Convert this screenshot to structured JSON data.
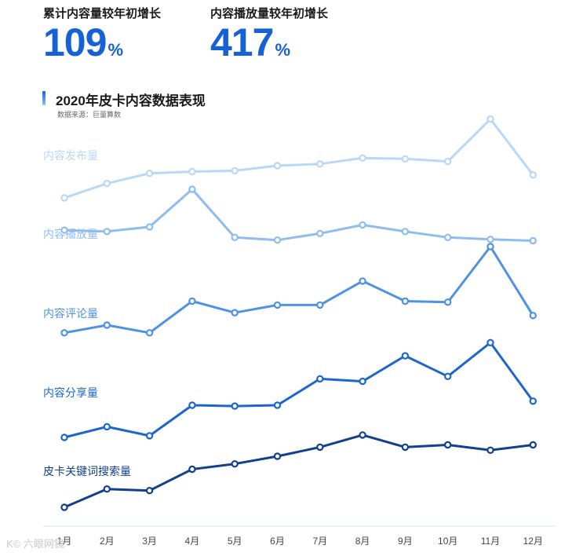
{
  "kpis": [
    {
      "label": "累计内容量较年初增长",
      "value": "109",
      "unit": "%"
    },
    {
      "label": "内容播放量较年初增长",
      "value": "417",
      "unit": "%"
    }
  ],
  "section": {
    "title": "2020年皮卡内容数据表现",
    "source": "数据来源：巨量算数"
  },
  "watermark": "K© 六眼网镜",
  "chart_data": {
    "type": "line",
    "categories": [
      "1月",
      "2月",
      "3月",
      "4月",
      "5月",
      "6月",
      "7月",
      "8月",
      "9月",
      "10月",
      "11月",
      "12月"
    ],
    "y_axis": "none",
    "grid": false,
    "series_scale": "each series drawn in its own band (relative index, no shared value axis)",
    "series": [
      {
        "name": "内容发布量",
        "color": "#b9d7f7",
        "values": [
          0,
          17,
          29,
          31,
          32,
          38,
          40,
          47,
          46,
          43,
          93,
          27
        ]
      },
      {
        "name": "内容播放量",
        "color": "#8ebcf1",
        "values": [
          38,
          36,
          43,
          100,
          27,
          23,
          33,
          46,
          36,
          27,
          24,
          22
        ]
      },
      {
        "name": "内容评论量",
        "color": "#4e92e5",
        "values": [
          10,
          18,
          10,
          43,
          31,
          39,
          39,
          64,
          43,
          42,
          100,
          28
        ]
      },
      {
        "name": "内容分享量",
        "color": "#1c66cc",
        "values": [
          0,
          13,
          2,
          39,
          38,
          39,
          71,
          68,
          99,
          74,
          115,
          44
        ]
      },
      {
        "name": "皮卡关键词搜索量",
        "color": "#123f8f",
        "values": [
          0,
          24,
          22,
          50,
          57,
          67,
          79,
          95,
          79,
          82,
          75,
          82
        ]
      }
    ]
  }
}
